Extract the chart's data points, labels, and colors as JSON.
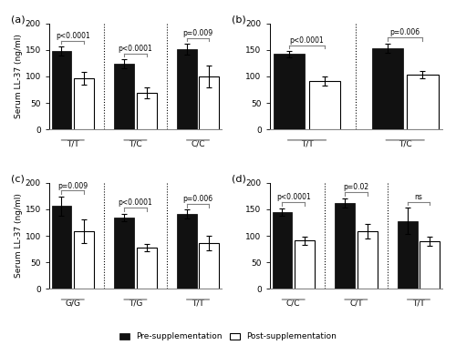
{
  "panels": [
    {
      "label": "(a)",
      "groups": [
        "T/T",
        "T/C",
        "C/C"
      ],
      "pre_vals": [
        148,
        124,
        151
      ],
      "pre_err": [
        8,
        8,
        10
      ],
      "post_vals": [
        97,
        69,
        100
      ],
      "post_err": [
        12,
        10,
        20
      ],
      "pvals": [
        "p<0.0001",
        "p<0.0001",
        "p=0.009"
      ],
      "ylim": [
        0,
        200
      ],
      "yticks": [
        0,
        50,
        100,
        150,
        200
      ],
      "ylabel": "Serum LL-37 (ng/ml)",
      "dividers": [
        1,
        2
      ]
    },
    {
      "label": "(b)",
      "groups": [
        "T/T",
        "T/C"
      ],
      "pre_vals": [
        142,
        153
      ],
      "pre_err": [
        6,
        9
      ],
      "post_vals": [
        91,
        103
      ],
      "post_err": [
        9,
        7
      ],
      "pvals": [
        "p<0.0001",
        "p=0.006"
      ],
      "ylim": [
        0,
        200
      ],
      "yticks": [
        0,
        50,
        100,
        150,
        200
      ],
      "ylabel": "Serum LL-37 (ng/ml)",
      "dividers": [
        1
      ]
    },
    {
      "label": "(c)",
      "groups": [
        "G/G",
        "T/G",
        "T/T"
      ],
      "pre_vals": [
        156,
        135,
        141
      ],
      "pre_err": [
        18,
        7,
        8
      ],
      "post_vals": [
        109,
        78,
        86
      ],
      "post_err": [
        22,
        7,
        14
      ],
      "pvals": [
        "p=0.009",
        "p<0.0001",
        "p=0.006"
      ],
      "ylim": [
        0,
        200
      ],
      "yticks": [
        0,
        50,
        100,
        150,
        200
      ],
      "ylabel": "Serum LL-37 (ng/ml)",
      "dividers": [
        1,
        2
      ]
    },
    {
      "label": "(d)",
      "groups": [
        "C/C",
        "C/T",
        "T/T"
      ],
      "pre_vals": [
        145,
        162,
        128
      ],
      "pre_err": [
        7,
        9,
        25
      ],
      "post_vals": [
        91,
        109,
        90
      ],
      "post_err": [
        8,
        14,
        8
      ],
      "pvals": [
        "p<0.0001",
        "p=0.02",
        "ns"
      ],
      "ylim": [
        0,
        200
      ],
      "yticks": [
        0,
        50,
        100,
        150,
        200
      ],
      "ylabel": "Serum LL-37 (ng/ml)",
      "dividers": [
        1,
        2
      ]
    }
  ],
  "pre_color": "#111111",
  "post_color": "#ffffff",
  "bar_width": 0.38,
  "bar_gap": 0.05,
  "legend_labels": [
    "Pre-supplementation",
    "Post-supplementation"
  ],
  "background_color": "#ffffff"
}
